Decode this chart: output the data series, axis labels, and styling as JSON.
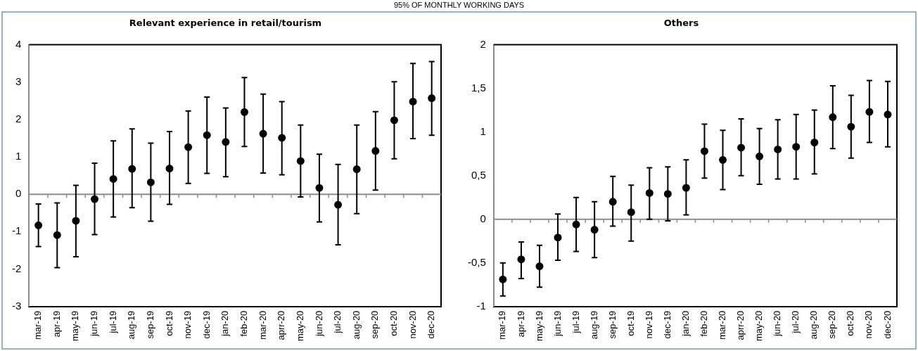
{
  "chart_data": [
    {
      "type": "scatter",
      "title": "Relevant experience in retail/tourism",
      "annotations": [
        "95% OF MONTHLY WORKING DAYS"
      ],
      "categories": [
        "mar-19",
        "apr-19",
        "may-19",
        "jun-19",
        "jul-19",
        "aug-19",
        "sep-19",
        "oct-19",
        "nov-19",
        "dec-19",
        "jan-20",
        "feb-20",
        "mar-20",
        "aprr-20",
        "may-20",
        "jun-20",
        "jul-20",
        "aug-20",
        "sep-20",
        "oct-20",
        "nov-20",
        "dec-20"
      ],
      "series": [
        {
          "color": "#000000",
          "values": [
            -0.83,
            -1.09,
            -0.71,
            -0.13,
            0.41,
            0.68,
            0.32,
            0.69,
            1.26,
            1.58,
            1.4,
            2.2,
            1.62,
            1.51,
            0.89,
            0.17,
            -0.28,
            0.67,
            1.16,
            1.98,
            2.48,
            2.57
          ],
          "errors": [
            [
              -1.4,
              -0.26
            ],
            [
              -1.96,
              -0.23
            ],
            [
              -1.67,
              0.24
            ],
            [
              -1.08,
              0.83
            ],
            [
              -0.61,
              1.43
            ],
            [
              -0.36,
              1.75
            ],
            [
              -0.72,
              1.37
            ],
            [
              -0.27,
              1.68
            ],
            [
              0.29,
              2.23
            ],
            [
              0.56,
              2.6
            ],
            [
              0.47,
              2.31
            ],
            [
              1.28,
              3.12
            ],
            [
              0.57,
              2.68
            ],
            [
              0.52,
              2.48
            ],
            [
              -0.07,
              1.85
            ],
            [
              -0.74,
              1.07
            ],
            [
              -1.35,
              0.8
            ],
            [
              -0.52,
              1.85
            ],
            [
              0.11,
              2.21
            ],
            [
              0.95,
              3.01
            ],
            [
              1.49,
              3.5
            ],
            [
              1.58,
              3.55
            ]
          ]
        }
      ],
      "ylim": [
        -3,
        4
      ],
      "yticks": [
        -3,
        -2,
        -1,
        0,
        1,
        2,
        3,
        4
      ],
      "ref_lines": [
        {
          "axis": "y",
          "value": 0,
          "color": "#8c8c8c"
        }
      ],
      "grid": false,
      "legend": false,
      "marker": "circle"
    },
    {
      "type": "scatter",
      "title": "Others",
      "categories": [
        "mar-19",
        "apr-19",
        "may-19",
        "jun-19",
        "jul-19",
        "aug-19",
        "sep-19",
        "oct-19",
        "nov-19",
        "dec-19",
        "jan-20",
        "feb-20",
        "mar-20",
        "aprr-20",
        "may-20",
        "jun-20",
        "jul-20",
        "aug-20",
        "sep-20",
        "oct-20",
        "nov-20",
        "dec-20"
      ],
      "series": [
        {
          "color": "#000000",
          "values": [
            -0.69,
            -0.46,
            -0.54,
            -0.21,
            -0.06,
            -0.12,
            0.2,
            0.08,
            0.3,
            0.29,
            0.36,
            0.78,
            0.68,
            0.82,
            0.72,
            0.8,
            0.83,
            0.88,
            1.17,
            1.06,
            1.23,
            1.2
          ],
          "errors": [
            [
              -0.88,
              -0.5
            ],
            [
              -0.68,
              -0.26
            ],
            [
              -0.78,
              -0.3
            ],
            [
              -0.47,
              0.06
            ],
            [
              -0.37,
              0.25
            ],
            [
              -0.44,
              0.2
            ],
            [
              -0.08,
              0.49
            ],
            [
              -0.25,
              0.39
            ],
            [
              0,
              0.59
            ],
            [
              -0.02,
              0.6
            ],
            [
              0.05,
              0.68
            ],
            [
              0.47,
              1.09
            ],
            [
              0.34,
              1.02
            ],
            [
              0.5,
              1.15
            ],
            [
              0.4,
              1.04
            ],
            [
              0.46,
              1.14
            ],
            [
              0.46,
              1.2
            ],
            [
              0.52,
              1.25
            ],
            [
              0.81,
              1.53
            ],
            [
              0.7,
              1.42
            ],
            [
              0.88,
              1.59
            ],
            [
              0.83,
              1.58
            ]
          ]
        }
      ],
      "ylim": [
        -1,
        2
      ],
      "yticks": [
        {
          "value": -1,
          "label": "-1"
        },
        {
          "value": -0.5,
          "label": "-0,5"
        },
        0,
        {
          "value": 0.5,
          "label": "0,5"
        },
        1,
        {
          "value": 1.5,
          "label": "1,5"
        },
        2
      ],
      "ref_lines": [
        {
          "axis": "y",
          "value": 0,
          "color": "#8c8c8c"
        }
      ],
      "grid": false,
      "legend": false,
      "marker": "circle"
    }
  ]
}
